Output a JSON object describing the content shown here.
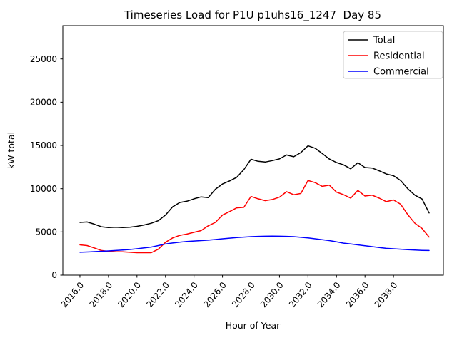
{
  "chart_data": {
    "type": "line",
    "title": "Timeseries Load for P1U p1uhs16_1247  Day 85",
    "xlabel": "Hour of Year",
    "ylabel": "kW total",
    "xlim": [
      2014.8,
      2041.5
    ],
    "ylim": [
      0,
      28850
    ],
    "grid": false,
    "legend_position": "upper right",
    "legend_frame_color": "#c8c8c8",
    "x_ticks": {
      "values": [
        2016,
        2018,
        2020,
        2022,
        2024,
        2026,
        2028,
        2030,
        2032,
        2034,
        2036,
        2038
      ],
      "labels": [
        "2016.0",
        "2018.0",
        "2020.0",
        "2022.0",
        "2024.0",
        "2026.0",
        "2028.0",
        "2030.0",
        "2032.0",
        "2034.0",
        "2036.0",
        "2038.0"
      ]
    },
    "y_ticks": {
      "values": [
        0,
        5000,
        10000,
        15000,
        20000,
        25000
      ],
      "labels": [
        "0",
        "5000",
        "10000",
        "15000",
        "20000",
        "25000"
      ]
    },
    "x": [
      2016,
      2016.5,
      2017,
      2017.5,
      2018,
      2018.5,
      2019,
      2019.5,
      2020,
      2020.5,
      2021,
      2021.5,
      2022,
      2022.5,
      2023,
      2023.5,
      2024,
      2024.5,
      2025,
      2025.5,
      2026,
      2026.5,
      2027,
      2027.5,
      2028,
      2028.5,
      2029,
      2029.5,
      2030,
      2030.5,
      2031,
      2031.5,
      2032,
      2032.5,
      2033,
      2033.5,
      2034,
      2034.5,
      2035,
      2035.5,
      2036,
      2036.5,
      2037,
      2037.5,
      2038,
      2038.5,
      2039,
      2039.5,
      2040,
      2040.5
    ],
    "series": [
      {
        "name": "Total",
        "color": "#000000",
        "values": [
          6100,
          6150,
          5900,
          5600,
          5500,
          5550,
          5500,
          5550,
          5650,
          5800,
          6000,
          6300,
          6950,
          7900,
          8400,
          8550,
          8830,
          9050,
          8970,
          9930,
          10540,
          10900,
          11310,
          12200,
          13400,
          13160,
          13080,
          13250,
          13440,
          13900,
          13690,
          14180,
          14950,
          14680,
          14070,
          13430,
          13020,
          12750,
          12300,
          13000,
          12450,
          12390,
          12060,
          11700,
          11500,
          10950,
          9990,
          9250,
          8800,
          7200
        ]
      },
      {
        "name": "Residential",
        "color": "#ff0000",
        "values": [
          3500,
          3420,
          3150,
          2850,
          2750,
          2700,
          2700,
          2650,
          2600,
          2600,
          2600,
          3000,
          3800,
          4300,
          4600,
          4750,
          4950,
          5150,
          5700,
          6100,
          6950,
          7350,
          7780,
          7840,
          9100,
          8830,
          8610,
          8745,
          9020,
          9650,
          9300,
          9450,
          10950,
          10700,
          10270,
          10400,
          9600,
          9300,
          8900,
          9800,
          9150,
          9250,
          8900,
          8500,
          8700,
          8200,
          7000,
          6000,
          5400,
          4400
        ]
      },
      {
        "name": "Commercial",
        "color": "#0000ff",
        "values": [
          2650,
          2680,
          2720,
          2760,
          2800,
          2850,
          2900,
          2970,
          3050,
          3150,
          3250,
          3420,
          3600,
          3720,
          3820,
          3890,
          3950,
          4000,
          4050,
          4120,
          4200,
          4280,
          4350,
          4400,
          4450,
          4480,
          4500,
          4510,
          4500,
          4480,
          4450,
          4380,
          4300,
          4200,
          4100,
          4000,
          3850,
          3700,
          3600,
          3500,
          3400,
          3300,
          3200,
          3100,
          3050,
          3000,
          2950,
          2900,
          2870,
          2850
        ]
      }
    ]
  }
}
